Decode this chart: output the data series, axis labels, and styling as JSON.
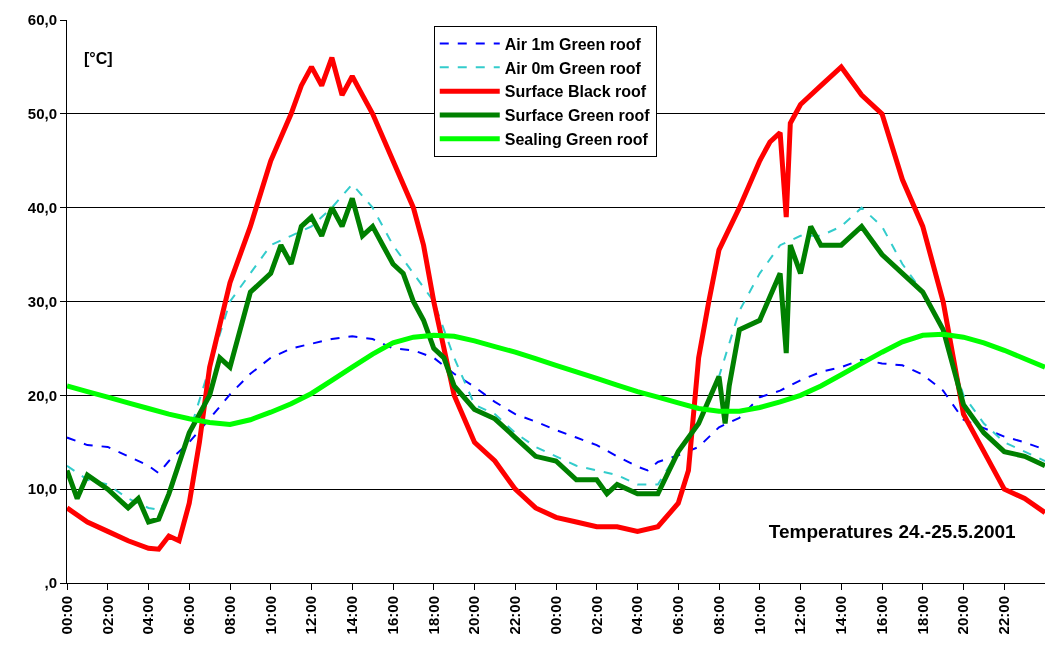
{
  "chart_data": {
    "type": "line",
    "title": "Temperatures 24.-25.5.2001",
    "ylabel": "[°C]",
    "xlim": [
      "2001-05-24T00:00",
      "2001-05-26T00:00"
    ],
    "ylim": [
      0,
      60
    ],
    "xticks": [
      {
        "value": "2001-05-24T00:00",
        "label": "00:00"
      },
      {
        "value": "2001-05-24T02:00",
        "label": "02:00"
      },
      {
        "value": "2001-05-24T04:00",
        "label": "04:00"
      },
      {
        "value": "2001-05-24T06:00",
        "label": "06:00"
      },
      {
        "value": "2001-05-24T08:00",
        "label": "08:00"
      },
      {
        "value": "2001-05-24T10:00",
        "label": "10:00"
      },
      {
        "value": "2001-05-24T12:00",
        "label": "12:00"
      },
      {
        "value": "2001-05-24T14:00",
        "label": "14:00"
      },
      {
        "value": "2001-05-24T16:00",
        "label": "16:00"
      },
      {
        "value": "2001-05-24T18:00",
        "label": "18:00"
      },
      {
        "value": "2001-05-24T20:00",
        "label": "20:00"
      },
      {
        "value": "2001-05-24T22:00",
        "label": "22:00"
      },
      {
        "value": "2001-05-25T00:00",
        "label": "00:00"
      },
      {
        "value": "2001-05-25T02:00",
        "label": "02:00"
      },
      {
        "value": "2001-05-25T04:00",
        "label": "04:00"
      },
      {
        "value": "2001-05-25T06:00",
        "label": "06:00"
      },
      {
        "value": "2001-05-25T08:00",
        "label": "08:00"
      },
      {
        "value": "2001-05-25T10:00",
        "label": "10:00"
      },
      {
        "value": "2001-05-25T12:00",
        "label": "12:00"
      },
      {
        "value": "2001-05-25T14:00",
        "label": "14:00"
      },
      {
        "value": "2001-05-25T16:00",
        "label": "16:00"
      },
      {
        "value": "2001-05-25T18:00",
        "label": "18:00"
      },
      {
        "value": "2001-05-25T20:00",
        "label": "20:00"
      },
      {
        "value": "2001-05-25T22:00",
        "label": "22:00"
      }
    ],
    "yticks": [
      {
        "value": 0,
        "label": ",0"
      },
      {
        "value": 10,
        "label": "10,0"
      },
      {
        "value": 20,
        "label": "20,0"
      },
      {
        "value": 30,
        "label": "30,0"
      },
      {
        "value": 40,
        "label": "40,0"
      },
      {
        "value": 50,
        "label": "50,0"
      },
      {
        "value": 60,
        "label": "60,0"
      }
    ],
    "grid": "y",
    "legend": "top",
    "marker": "none",
    "series": [
      {
        "name": "Air 1m Green roof",
        "color": "#0000ff",
        "line_style": "dashed",
        "x": [
          "2001-05-24T00:00",
          "2001-05-24T01:00",
          "2001-05-24T02:00",
          "2001-05-24T03:00",
          "2001-05-24T04:00",
          "2001-05-24T04:30",
          "2001-05-24T05:00",
          "2001-05-24T06:00",
          "2001-05-24T07:00",
          "2001-05-24T08:00",
          "2001-05-24T09:00",
          "2001-05-24T10:00",
          "2001-05-24T11:00",
          "2001-05-24T12:00",
          "2001-05-24T13:00",
          "2001-05-24T14:00",
          "2001-05-24T15:00",
          "2001-05-24T16:00",
          "2001-05-24T17:00",
          "2001-05-24T18:00",
          "2001-05-24T19:00",
          "2001-05-24T20:00",
          "2001-05-24T21:00",
          "2001-05-24T22:00",
          "2001-05-24T23:00",
          "2001-05-25T00:00",
          "2001-05-25T01:00",
          "2001-05-25T02:00",
          "2001-05-25T03:00",
          "2001-05-25T04:00",
          "2001-05-25T04:30",
          "2001-05-25T05:00",
          "2001-05-25T06:00",
          "2001-05-25T07:00",
          "2001-05-25T08:00",
          "2001-05-25T09:00",
          "2001-05-25T10:00",
          "2001-05-25T11:00",
          "2001-05-25T12:00",
          "2001-05-25T13:00",
          "2001-05-25T14:00",
          "2001-05-25T15:00",
          "2001-05-25T16:00",
          "2001-05-25T17:00",
          "2001-05-25T18:00",
          "2001-05-25T19:00",
          "2001-05-25T20:00",
          "2001-05-25T21:00",
          "2001-05-25T22:00",
          "2001-05-25T23:00",
          "2001-05-26T00:00"
        ],
        "values": [
          15.5,
          14.7,
          14.5,
          13.5,
          12.5,
          11.7,
          13,
          15,
          17.5,
          20.1,
          22.3,
          24,
          25,
          25.5,
          26,
          26.3,
          26,
          25,
          24.8,
          24,
          22.3,
          20.9,
          19.3,
          18,
          17.2,
          16.3,
          15.5,
          14.7,
          13.5,
          12.4,
          12,
          12.9,
          13.6,
          14.5,
          16.6,
          17.6,
          19.8,
          20.5,
          21.6,
          22.5,
          23,
          23.8,
          23.4,
          23.2,
          22.2,
          20.5,
          17.4,
          16.5,
          15.6,
          15,
          14.2
        ]
      },
      {
        "name": "Air 0m Green roof",
        "color": "#33cccc",
        "line_style": "dashed",
        "x": [
          "2001-05-24T00:00",
          "2001-05-24T01:00",
          "2001-05-24T02:00",
          "2001-05-24T03:00",
          "2001-05-24T04:00",
          "2001-05-24T04:30",
          "2001-05-24T05:00",
          "2001-05-24T06:00",
          "2001-05-24T07:00",
          "2001-05-24T08:00",
          "2001-05-24T09:00",
          "2001-05-24T10:00",
          "2001-05-24T11:00",
          "2001-05-24T12:00",
          "2001-05-24T13:00",
          "2001-05-24T14:00",
          "2001-05-24T15:00",
          "2001-05-24T16:00",
          "2001-05-24T17:00",
          "2001-05-24T18:00",
          "2001-05-24T19:00",
          "2001-05-24T20:00",
          "2001-05-24T21:00",
          "2001-05-24T22:00",
          "2001-05-24T23:00",
          "2001-05-25T00:00",
          "2001-05-25T01:00",
          "2001-05-25T02:00",
          "2001-05-25T03:00",
          "2001-05-25T04:00",
          "2001-05-25T05:00",
          "2001-05-25T06:00",
          "2001-05-25T07:00",
          "2001-05-25T08:00",
          "2001-05-25T09:00",
          "2001-05-25T10:00",
          "2001-05-25T11:00",
          "2001-05-25T12:00",
          "2001-05-25T13:00",
          "2001-05-25T14:00",
          "2001-05-25T15:00",
          "2001-05-25T16:00",
          "2001-05-25T17:00",
          "2001-05-25T18:00",
          "2001-05-25T19:00",
          "2001-05-25T20:00",
          "2001-05-25T21:00",
          "2001-05-25T22:00",
          "2001-05-25T23:00",
          "2001-05-26T00:00"
        ],
        "values": [
          12.5,
          11,
          10.5,
          9,
          8,
          7.8,
          9,
          16,
          23,
          30,
          33,
          36,
          37,
          38,
          40,
          42.5,
          40,
          36,
          33,
          30,
          24,
          19,
          18,
          16,
          14.5,
          13.5,
          12.5,
          12,
          11.5,
          10.5,
          10.5,
          14,
          17,
          22,
          29,
          33,
          36,
          37,
          37,
          38,
          40,
          38,
          34,
          31,
          27,
          20,
          17,
          15,
          14,
          13
        ]
      },
      {
        "name": "Surface Black roof",
        "color": "#ff0000",
        "line_style": "solid",
        "x": [
          "2001-05-24T00:00",
          "2001-05-24T01:00",
          "2001-05-24T02:00",
          "2001-05-24T03:00",
          "2001-05-24T04:00",
          "2001-05-24T04:30",
          "2001-05-24T05:00",
          "2001-05-24T05:30",
          "2001-05-24T06:00",
          "2001-05-24T06:30",
          "2001-05-24T07:00",
          "2001-05-24T08:00",
          "2001-05-24T09:00",
          "2001-05-24T10:00",
          "2001-05-24T11:00",
          "2001-05-24T11:30",
          "2001-05-24T12:00",
          "2001-05-24T12:30",
          "2001-05-24T13:00",
          "2001-05-24T13:30",
          "2001-05-24T14:00",
          "2001-05-24T14:30",
          "2001-05-24T15:00",
          "2001-05-24T16:00",
          "2001-05-24T17:00",
          "2001-05-24T17:30",
          "2001-05-24T18:00",
          "2001-05-24T19:00",
          "2001-05-24T20:00",
          "2001-05-24T21:00",
          "2001-05-24T22:00",
          "2001-05-24T23:00",
          "2001-05-25T00:00",
          "2001-05-25T01:00",
          "2001-05-25T02:00",
          "2001-05-25T03:00",
          "2001-05-25T04:00",
          "2001-05-25T05:00",
          "2001-05-25T06:00",
          "2001-05-25T06:30",
          "2001-05-25T07:00",
          "2001-05-25T07:30",
          "2001-05-25T08:00",
          "2001-05-25T09:00",
          "2001-05-25T10:00",
          "2001-05-25T10:30",
          "2001-05-25T11:00",
          "2001-05-25T11:18",
          "2001-05-25T11:30",
          "2001-05-25T12:00",
          "2001-05-25T13:00",
          "2001-05-25T14:00",
          "2001-05-25T15:00",
          "2001-05-25T16:00",
          "2001-05-25T17:00",
          "2001-05-25T18:00",
          "2001-05-25T19:00",
          "2001-05-25T19:30",
          "2001-05-25T20:00",
          "2001-05-25T21:00",
          "2001-05-25T22:00",
          "2001-05-25T23:00",
          "2001-05-26T00:00"
        ],
        "values": [
          8,
          6.5,
          5.5,
          4.5,
          3.7,
          3.6,
          5,
          4.5,
          8.5,
          15,
          23,
          32,
          38,
          45,
          50,
          53,
          55,
          53,
          56,
          52,
          54,
          52,
          50,
          45,
          40,
          36,
          30,
          20,
          15,
          13,
          10,
          8,
          7,
          6.5,
          6,
          6,
          5.5,
          6,
          8.5,
          12,
          24,
          30,
          35.5,
          40,
          45,
          47,
          48,
          39,
          49,
          51,
          53,
          55,
          52,
          50,
          43,
          38,
          30,
          24,
          18,
          14,
          10,
          9,
          7.5
        ]
      },
      {
        "name": "Surface Green roof",
        "color": "#008000",
        "line_style": "solid",
        "x": [
          "2001-05-24T00:00",
          "2001-05-24T00:30",
          "2001-05-24T01:00",
          "2001-05-24T02:00",
          "2001-05-24T03:00",
          "2001-05-24T03:30",
          "2001-05-24T04:00",
          "2001-05-24T04:30",
          "2001-05-24T05:00",
          "2001-05-24T06:00",
          "2001-05-24T07:00",
          "2001-05-24T07:30",
          "2001-05-24T08:00",
          "2001-05-24T08:30",
          "2001-05-24T09:00",
          "2001-05-24T10:00",
          "2001-05-24T10:30",
          "2001-05-24T11:00",
          "2001-05-24T11:30",
          "2001-05-24T12:00",
          "2001-05-24T12:30",
          "2001-05-24T13:00",
          "2001-05-24T13:30",
          "2001-05-24T14:00",
          "2001-05-24T14:30",
          "2001-05-24T15:00",
          "2001-05-24T15:30",
          "2001-05-24T16:00",
          "2001-05-24T16:30",
          "2001-05-24T17:00",
          "2001-05-24T17:30",
          "2001-05-24T18:00",
          "2001-05-24T18:30",
          "2001-05-24T19:00",
          "2001-05-24T20:00",
          "2001-05-24T21:00",
          "2001-05-24T22:00",
          "2001-05-24T23:00",
          "2001-05-25T00:00",
          "2001-05-25T01:00",
          "2001-05-25T02:00",
          "2001-05-25T02:30",
          "2001-05-25T03:00",
          "2001-05-25T04:00",
          "2001-05-25T05:00",
          "2001-05-25T06:00",
          "2001-05-25T07:00",
          "2001-05-25T08:00",
          "2001-05-25T08:18",
          "2001-05-25T08:30",
          "2001-05-25T09:00",
          "2001-05-25T10:00",
          "2001-05-25T11:00",
          "2001-05-25T11:18",
          "2001-05-25T11:30",
          "2001-05-25T12:00",
          "2001-05-25T12:30",
          "2001-05-25T13:00",
          "2001-05-25T14:00",
          "2001-05-25T15:00",
          "2001-05-25T16:00",
          "2001-05-25T17:00",
          "2001-05-25T18:00",
          "2001-05-25T19:00",
          "2001-05-25T20:00",
          "2001-05-25T21:00",
          "2001-05-25T22:00",
          "2001-05-25T23:00",
          "2001-05-26T00:00"
        ],
        "values": [
          12,
          9,
          11.5,
          10,
          8,
          9,
          6.5,
          6.8,
          9.5,
          16,
          20,
          24,
          23,
          27,
          31,
          33,
          36,
          34,
          38,
          39,
          37,
          40,
          38,
          41,
          37,
          38,
          36,
          34,
          33,
          30,
          28,
          25,
          24,
          21,
          18.5,
          17.5,
          15.5,
          13.5,
          13,
          11,
          11,
          9.5,
          10.5,
          9.5,
          9.5,
          14,
          17,
          22,
          17,
          21,
          27,
          28,
          33,
          24.5,
          36,
          33,
          38,
          36,
          36,
          38,
          35,
          33,
          31,
          27,
          19,
          16,
          14,
          13.5,
          12.5
        ]
      },
      {
        "name": "Sealing Green roof",
        "color": "#00ff00",
        "line_style": "solid",
        "x": [
          "2001-05-24T00:00",
          "2001-05-24T01:00",
          "2001-05-24T02:00",
          "2001-05-24T03:00",
          "2001-05-24T04:00",
          "2001-05-24T05:00",
          "2001-05-24T06:00",
          "2001-05-24T07:00",
          "2001-05-24T08:00",
          "2001-05-24T09:00",
          "2001-05-24T10:00",
          "2001-05-24T11:00",
          "2001-05-24T12:00",
          "2001-05-24T13:00",
          "2001-05-24T14:00",
          "2001-05-24T15:00",
          "2001-05-24T16:00",
          "2001-05-24T17:00",
          "2001-05-24T18:00",
          "2001-05-24T19:00",
          "2001-05-24T20:00",
          "2001-05-24T21:00",
          "2001-05-24T22:00",
          "2001-05-24T23:00",
          "2001-05-25T00:00",
          "2001-05-25T01:00",
          "2001-05-25T02:00",
          "2001-05-25T03:00",
          "2001-05-25T04:00",
          "2001-05-25T05:00",
          "2001-05-25T06:00",
          "2001-05-25T07:00",
          "2001-05-25T08:00",
          "2001-05-25T09:00",
          "2001-05-25T10:00",
          "2001-05-25T11:00",
          "2001-05-25T12:00",
          "2001-05-25T13:00",
          "2001-05-25T14:00",
          "2001-05-25T15:00",
          "2001-05-25T16:00",
          "2001-05-25T17:00",
          "2001-05-25T18:00",
          "2001-05-25T19:00",
          "2001-05-25T20:00",
          "2001-05-25T21:00",
          "2001-05-25T22:00",
          "2001-05-25T23:00",
          "2001-05-26T00:00"
        ],
        "values": [
          21,
          20.4,
          19.8,
          19.2,
          18.6,
          18,
          17.5,
          17.1,
          16.9,
          17.4,
          18.2,
          19.1,
          20.2,
          21.6,
          23,
          24.4,
          25.6,
          26.2,
          26.4,
          26.3,
          25.8,
          25.2,
          24.6,
          23.9,
          23.2,
          22.5,
          21.8,
          21.1,
          20.4,
          19.8,
          19.2,
          18.6,
          18.3,
          18.3,
          18.7,
          19.3,
          20,
          21,
          22.2,
          23.4,
          24.6,
          25.7,
          26.4,
          26.5,
          26.2,
          25.6,
          24.8,
          23.9,
          23
        ]
      }
    ]
  }
}
